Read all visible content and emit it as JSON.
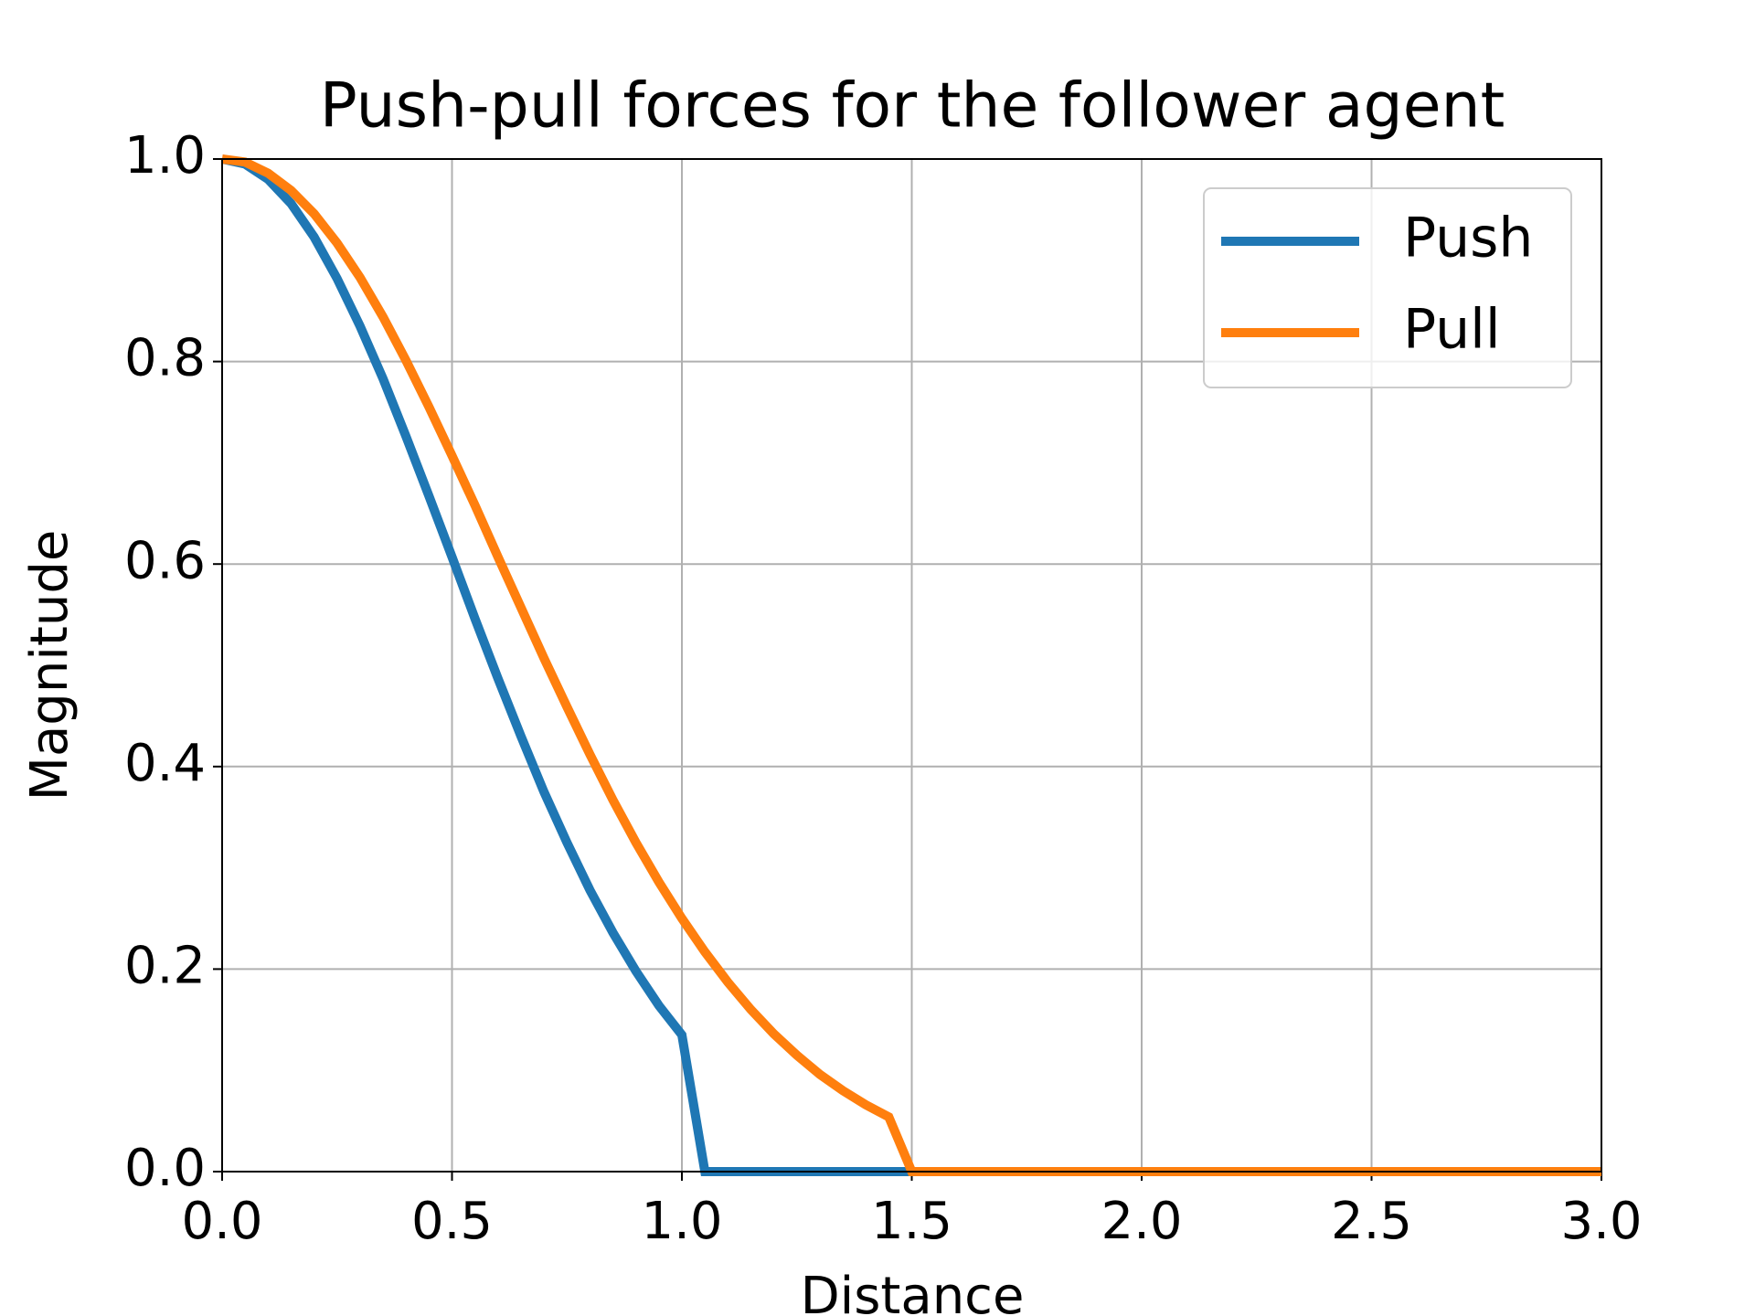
{
  "chart_data": {
    "type": "line",
    "title": "Push-pull forces for the follower agent",
    "x_label": "Distance",
    "y_label": "Magnitude",
    "x": [
      0,
      0.05,
      0.1,
      0.15,
      0.2,
      0.25,
      0.3,
      0.35,
      0.4,
      0.45,
      0.5,
      0.55,
      0.6,
      0.65,
      0.7,
      0.75,
      0.8,
      0.85,
      0.9,
      0.95,
      1.0,
      1.05,
      1.1,
      1.15,
      1.2,
      1.25,
      1.3,
      1.35,
      1.4,
      1.45,
      1.5,
      3.0
    ],
    "series": [
      {
        "name": "Push",
        "color": "#1f77b4",
        "values": [
          1,
          0.995,
          0.98,
          0.956,
          0.923,
          0.882,
          0.835,
          0.783,
          0.726,
          0.667,
          0.607,
          0.546,
          0.487,
          0.43,
          0.375,
          0.325,
          0.278,
          0.236,
          0.198,
          0.164,
          0.135,
          0,
          0,
          0,
          0,
          0,
          0,
          0,
          0,
          0,
          0,
          0
        ]
      },
      {
        "name": "Pull",
        "color": "#ff7f0e",
        "values": [
          1,
          0.997,
          0.986,
          0.969,
          0.946,
          0.917,
          0.883,
          0.844,
          0.801,
          0.755,
          0.707,
          0.658,
          0.607,
          0.557,
          0.507,
          0.459,
          0.412,
          0.367,
          0.325,
          0.286,
          0.25,
          0.217,
          0.187,
          0.16,
          0.136,
          0.115,
          0.096,
          0.08,
          0.066,
          0.054,
          0,
          0
        ]
      }
    ],
    "xlim": [
      0,
      3
    ],
    "ylim": [
      0,
      1
    ],
    "xticks": [
      {
        "value": 0,
        "label": "0.0"
      },
      {
        "value": 0.5,
        "label": "0.5"
      },
      {
        "value": 1,
        "label": "1.0"
      },
      {
        "value": 1.5,
        "label": "1.5"
      },
      {
        "value": 2,
        "label": "2.0"
      },
      {
        "value": 2.5,
        "label": "2.5"
      },
      {
        "value": 3,
        "label": "3.0"
      }
    ],
    "yticks": [
      {
        "value": 0,
        "label": "0.0"
      },
      {
        "value": 0.2,
        "label": "0.2"
      },
      {
        "value": 0.4,
        "label": "0.4"
      },
      {
        "value": 0.6,
        "label": "0.6"
      },
      {
        "value": 0.8,
        "label": "0.8"
      },
      {
        "value": 1,
        "label": "1.0"
      }
    ],
    "grid": true,
    "legend": "upper right"
  }
}
